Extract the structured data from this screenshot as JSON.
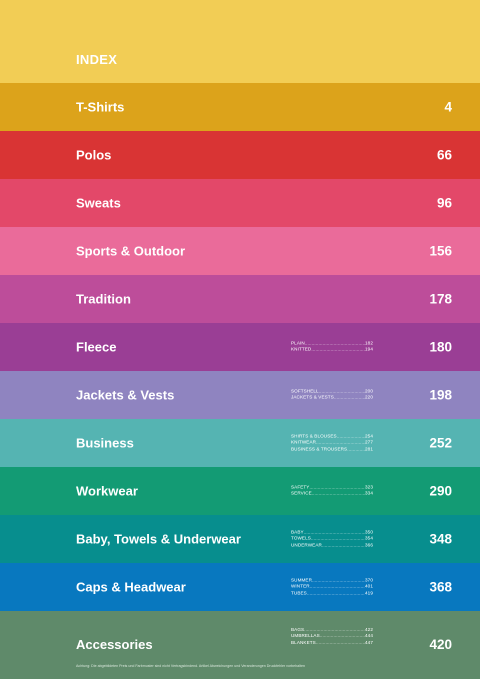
{
  "index_title": "INDEX",
  "colors": {
    "header": "#f2cd55",
    "tshirts": "#dca31b",
    "polos": "#d93434",
    "sweats": "#e34869",
    "sports": "#ea6b9a",
    "tradition": "#bd4d9a",
    "fleece": "#9a3e95",
    "jackets": "#8f84c0",
    "business": "#55b4b2",
    "workwear": "#139b74",
    "baby": "#078e8e",
    "caps": "#0878bf",
    "accessories": "#5f8a6a"
  },
  "categories": [
    {
      "label": "T-Shirts",
      "page": "4",
      "color": "#dca31b",
      "subs": []
    },
    {
      "label": "Polos",
      "page": "66",
      "color": "#d93434",
      "subs": []
    },
    {
      "label": "Sweats",
      "page": "96",
      "color": "#e34869",
      "subs": []
    },
    {
      "label": "Sports & Outdoor",
      "page": "156",
      "color": "#ea6b9a",
      "subs": []
    },
    {
      "label": "Tradition",
      "page": "178",
      "color": "#bd4d9a",
      "subs": []
    },
    {
      "label": "Fleece",
      "page": "180",
      "color": "#9a3e95",
      "subs": [
        {
          "name": "PLAIN",
          "page": "182"
        },
        {
          "name": "KNITTED",
          "page": "194"
        }
      ]
    },
    {
      "label": "Jackets & Vests",
      "page": "198",
      "color": "#8f84c0",
      "subs": [
        {
          "name": "SOFTSHELL",
          "page": "200"
        },
        {
          "name": "JACKETS & VESTS",
          "page": "220"
        }
      ]
    },
    {
      "label": "Business",
      "page": "252",
      "color": "#55b4b2",
      "subs": [
        {
          "name": "SHIRTS & BLOUSES",
          "page": "254"
        },
        {
          "name": "KNITWEAR",
          "page": "277"
        },
        {
          "name": "BUSINESS & TROUSERS",
          "page": "281"
        }
      ]
    },
    {
      "label": "Workwear",
      "page": "290",
      "color": "#139b74",
      "subs": [
        {
          "name": "SAFETY",
          "page": "323"
        },
        {
          "name": "SERVICE",
          "page": "334"
        }
      ]
    },
    {
      "label": "Baby, Towels & Underwear",
      "page": "348",
      "color": "#078e8e",
      "subs": [
        {
          "name": "BABY",
          "page": "350"
        },
        {
          "name": "TOWELS",
          "page": "354"
        },
        {
          "name": "UNDERWEAR",
          "page": "366"
        }
      ]
    },
    {
      "label": "Caps & Headwear",
      "page": "368",
      "color": "#0878bf",
      "subs": [
        {
          "name": "SUMMER",
          "page": "370"
        },
        {
          "name": "WINTER",
          "page": "401"
        },
        {
          "name": "TUBES",
          "page": "419"
        }
      ]
    },
    {
      "label": "Accessories",
      "page": "420",
      "color": "#5f8a6a",
      "subs": [
        {
          "name": "BAGS",
          "page": "422"
        },
        {
          "name": "UMBRELLAS",
          "page": "444"
        },
        {
          "name": "BLANKETS",
          "page": "447"
        }
      ]
    }
  ],
  "footnote": "Achtung: Die abgebildeten Preis und Farbmuster sind nicht Vertragsbindend. Artikel Abweichungen und Veranderungen Druckfehler vorbehalten"
}
